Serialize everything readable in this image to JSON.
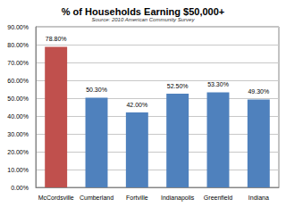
{
  "chart_data": {
    "type": "bar",
    "title": "% of Households Earning $50,000+",
    "subtitle": "Source: 2010 American Community Survey",
    "categories": [
      "McCordsville",
      "Cumberland",
      "Fortville",
      "Indianapolis",
      "Greenfield",
      "Indiana"
    ],
    "values": [
      78.8,
      50.3,
      42.0,
      52.5,
      53.3,
      49.3
    ],
    "value_labels": [
      "78.80%",
      "50.30%",
      "42.00%",
      "52.50%",
      "53.30%",
      "49.30%"
    ],
    "colors": [
      "#c0504d",
      "#4f81bd",
      "#4f81bd",
      "#4f81bd",
      "#4f81bd",
      "#4f81bd"
    ],
    "ylim": [
      0,
      90
    ],
    "yticks": [
      {
        "value": 0,
        "label": "0.00%"
      },
      {
        "value": 10,
        "label": "10.00%"
      },
      {
        "value": 20,
        "label": "20.00%"
      },
      {
        "value": 30,
        "label": "30.00%"
      },
      {
        "value": 40,
        "label": "40.00%"
      },
      {
        "value": 50,
        "label": "50.00%"
      },
      {
        "value": 60,
        "label": "60.00%"
      },
      {
        "value": 70,
        "label": "70.00%"
      },
      {
        "value": 80,
        "label": "80.00%"
      },
      {
        "value": 90,
        "label": "90.00%"
      }
    ],
    "grid": true,
    "data_labels": true
  }
}
